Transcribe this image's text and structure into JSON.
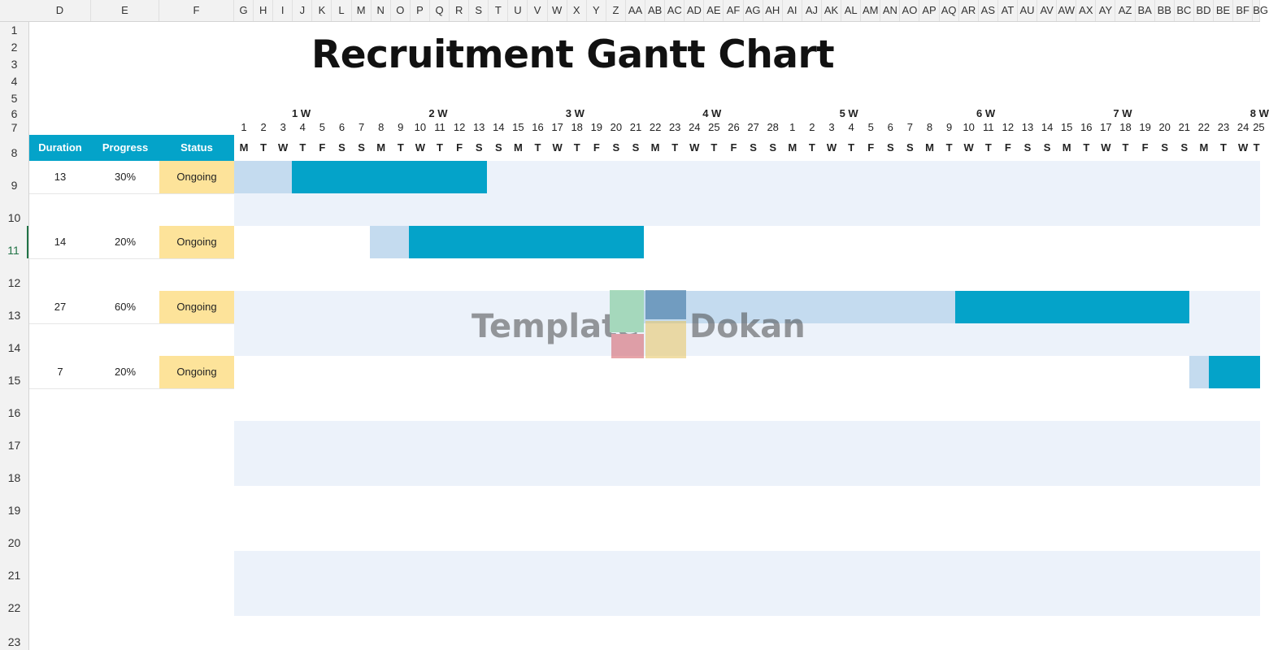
{
  "sheet": {
    "title": "Recruitment Gantt Chart",
    "column_letters": [
      "D",
      "E",
      "F",
      "G",
      "H",
      "I",
      "J",
      "K",
      "L",
      "M",
      "N",
      "O",
      "P",
      "Q",
      "R",
      "S",
      "T",
      "U",
      "V",
      "W",
      "X",
      "Y",
      "Z",
      "AA",
      "AB",
      "AC",
      "AD",
      "AE",
      "AF",
      "AG",
      "AH",
      "AI",
      "AJ",
      "AK",
      "AL",
      "AM",
      "AN",
      "AO",
      "AP",
      "AQ",
      "AR",
      "AS",
      "AT",
      "AU",
      "AV",
      "AW",
      "AX",
      "AY",
      "AZ",
      "BA",
      "BB",
      "BC",
      "BD",
      "BE",
      "BF",
      "BG"
    ],
    "row_numbers": [
      "1",
      "2",
      "3",
      "4",
      "5",
      "6",
      "7",
      "8",
      "9",
      "10",
      "11",
      "12",
      "13",
      "14",
      "15",
      "16",
      "17",
      "18",
      "19",
      "20",
      "21",
      "22",
      "23"
    ],
    "active_row": "11"
  },
  "table_header": {
    "duration": "Duration",
    "progress": "Progress",
    "status": "Status"
  },
  "calendar": {
    "weeks": [
      "1 W",
      "2 W",
      "3 W",
      "4 W",
      "5 W",
      "6 W",
      "7 W",
      "8 W"
    ],
    "days": [
      "1",
      "2",
      "3",
      "4",
      "5",
      "6",
      "7",
      "8",
      "9",
      "10",
      "11",
      "12",
      "13",
      "14",
      "15",
      "16",
      "17",
      "18",
      "19",
      "20",
      "21",
      "22",
      "23",
      "24",
      "25",
      "26",
      "27",
      "28",
      "1",
      "2",
      "3",
      "4",
      "5",
      "6",
      "7",
      "8",
      "9",
      "10",
      "11",
      "12",
      "13",
      "14",
      "15",
      "16",
      "17",
      "18",
      "19",
      "20",
      "21",
      "22",
      "23",
      "24",
      "25"
    ],
    "day_letters": [
      "M",
      "T",
      "W",
      "T",
      "F",
      "S",
      "S",
      "M",
      "T",
      "W",
      "T",
      "F",
      "S",
      "S",
      "M",
      "T",
      "W",
      "T",
      "F",
      "S",
      "S",
      "M",
      "T",
      "W",
      "T",
      "F",
      "S",
      "S",
      "M",
      "T",
      "W",
      "T",
      "F",
      "S",
      "S",
      "M",
      "T",
      "W",
      "T",
      "F",
      "S",
      "S",
      "M",
      "T",
      "W",
      "T",
      "F",
      "S",
      "S",
      "M",
      "T",
      "W",
      "T"
    ]
  },
  "tasks": [
    {
      "duration": "13",
      "progress": "30%",
      "status": "Ongoing",
      "progress_fraction": 0.3
    },
    {
      "duration": "14",
      "progress": "20%",
      "status": "Ongoing",
      "progress_fraction": 0.2
    },
    {
      "duration": "27",
      "progress": "60%",
      "status": "Ongoing",
      "progress_fraction": 0.6
    },
    {
      "duration": "7",
      "progress": "20%",
      "status": "Ongoing",
      "progress_fraction": 0.2
    }
  ],
  "watermark": {
    "left": "Template",
    "right": "Dokan"
  },
  "colors": {
    "accent": "#04a3c9",
    "plan_bar": "#c4dbef",
    "band": "#ecf2fa",
    "status_fill": "#fde39a"
  }
}
